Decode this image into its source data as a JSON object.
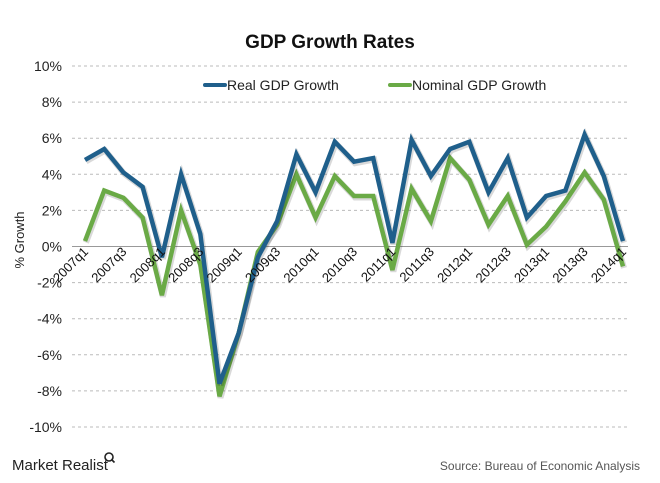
{
  "chart_data": {
    "type": "line",
    "title": "GDP Growth Rates",
    "xlabel": "",
    "ylabel": "% Growth",
    "ylim": [
      -10,
      10
    ],
    "yticks": [
      10,
      8,
      6,
      4,
      2,
      0,
      -2,
      -4,
      -6,
      -8,
      -10
    ],
    "ytick_labels": [
      "10%",
      "8%",
      "6%",
      "4%",
      "2%",
      "0%",
      "-2%",
      "-4%",
      "-6%",
      "-8%",
      "-10%"
    ],
    "grid": true,
    "legend_position": "top-center",
    "x": [
      "2007q1",
      "2007q2",
      "2007q3",
      "2007q4",
      "2008q1",
      "2008q2",
      "2008q3",
      "2008q4",
      "2009q1",
      "2009q2",
      "2009q3",
      "2009q4",
      "2010q1",
      "2010q2",
      "2010q3",
      "2010q4",
      "2011q1",
      "2011q2",
      "2011q3",
      "2011q4",
      "2012q1",
      "2012q2",
      "2012q3",
      "2012q4",
      "2013q1",
      "2013q2",
      "2013q3",
      "2013q4",
      "2014q1"
    ],
    "xtick_labels": [
      "2007q1",
      "2007q3",
      "2008q1",
      "2008q3",
      "2009q1",
      "2009q3",
      "2010q1",
      "2010q3",
      "2011q1",
      "2011q3",
      "2012q1",
      "2012q3",
      "2013q1",
      "2013q3",
      "2014q1"
    ],
    "series": [
      {
        "name": "Real GDP Growth",
        "color": "#1f5f8b",
        "values": [
          4.8,
          5.4,
          4.1,
          3.3,
          -0.6,
          4.0,
          0.7,
          -7.6,
          -4.8,
          -0.6,
          1.4,
          5.1,
          3.0,
          5.8,
          4.7,
          4.9,
          0.2,
          5.9,
          3.9,
          5.4,
          5.8,
          3.0,
          4.9,
          1.6,
          2.8,
          3.1,
          6.2,
          3.9,
          0.3
        ]
      },
      {
        "name": "Nominal GDP Growth",
        "color": "#6aaa46",
        "values": [
          0.3,
          3.1,
          2.7,
          1.6,
          -2.7,
          2.0,
          -1.0,
          -8.3,
          -4.8,
          -0.3,
          1.2,
          4.0,
          1.6,
          3.9,
          2.8,
          2.8,
          -1.3,
          3.2,
          1.4,
          4.9,
          3.7,
          1.2,
          2.8,
          0.1,
          1.1,
          2.5,
          4.1,
          2.6,
          -1.1
        ]
      }
    ]
  },
  "footer": {
    "brand": "Market Realist",
    "source": "Source: Bureau of Economic Analysis"
  }
}
